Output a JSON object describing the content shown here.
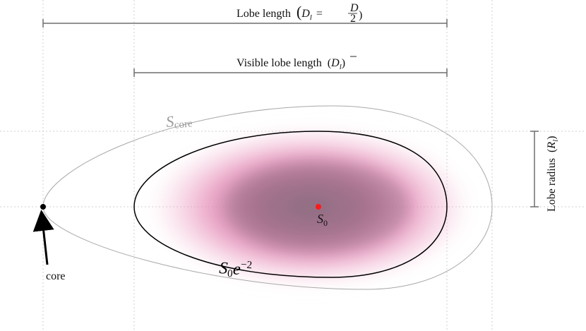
{
  "labels": {
    "lobe_length_text": "Lobe length",
    "lobe_length_symbol_D": "D",
    "lobe_length_symbol_sub": "l",
    "lobe_length_eq": "=",
    "lobe_length_num": "D",
    "lobe_length_den": "2",
    "visible_lobe_length_text": "Visible lobe length",
    "visible_symbol_D": "D",
    "visible_symbol_sub": "l",
    "lobe_radius_text": "Lobe radius",
    "lobe_radius_symbol_R": "R",
    "lobe_radius_symbol_sub": "l",
    "s_core_S": "S",
    "s_core_sub": "core",
    "s0_S": "S",
    "s0_sub": "0",
    "s0e_S": "S",
    "s0e_sub": "0",
    "s0e_e": "e",
    "s0e_exp": "−2",
    "core_label": "core"
  },
  "colors": {
    "lobe_fill": "#e9509a",
    "lobe_core": "#9a6f86",
    "outer_contour": "#a6a6a6",
    "inner_contour": "#000000",
    "center_dot": "#ff1a1a",
    "guide_lines": "#c8c8c8",
    "dimension_lines": "#6e6e6e"
  }
}
